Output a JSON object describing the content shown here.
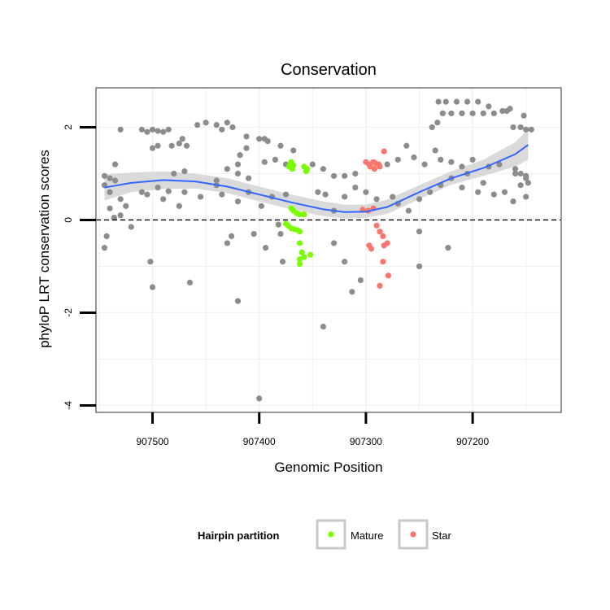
{
  "chart_data": {
    "type": "scatter",
    "title": "Conservation",
    "xlabel": "Genomic Position",
    "ylabel": "phyloP LRT conservation scores",
    "x_reversed": true,
    "xlim": [
      907117,
      907553
    ],
    "ylim": [
      -4.15,
      2.85
    ],
    "x_ticks": [
      907500,
      907400,
      907300,
      907200
    ],
    "y_ticks": [
      -4,
      -2,
      0,
      2
    ],
    "reference_line": {
      "y": 0,
      "style": "dashed"
    },
    "grid": true,
    "legend": {
      "title": "Hairpin partition",
      "position": "bottom",
      "entries": [
        {
          "label": "Mature",
          "color": "#7cfc00"
        },
        {
          "label": "Star",
          "color": "#f8766d"
        }
      ]
    },
    "colors": {
      "other": "#8c8c8c",
      "mature": "#7cfc00",
      "star": "#f8766d",
      "smooth": "#3366ff",
      "band": "#d3d3d3"
    },
    "series": [
      {
        "name": "Mature",
        "points": [
          [
            907372,
            1.15
          ],
          [
            907371,
            1.2
          ],
          [
            907370,
            1.25
          ],
          [
            907368,
            1.18
          ],
          [
            907369,
            1.1
          ],
          [
            907358,
            1.15
          ],
          [
            907355,
            1.1
          ],
          [
            907356,
            1.05
          ],
          [
            907370,
            0.25
          ],
          [
            907368,
            0.2
          ],
          [
            907365,
            0.15
          ],
          [
            907362,
            0.12
          ],
          [
            907358,
            0.12
          ],
          [
            907375,
            -0.08
          ],
          [
            907373,
            -0.12
          ],
          [
            907370,
            -0.18
          ],
          [
            907367,
            -0.2
          ],
          [
            907364,
            -0.22
          ],
          [
            907362,
            -0.25
          ],
          [
            907362,
            -0.5
          ],
          [
            907360,
            -0.7
          ],
          [
            907358,
            -0.8
          ],
          [
            907362,
            -0.85
          ],
          [
            907362,
            -0.95
          ],
          [
            907352,
            -0.75
          ]
        ]
      },
      {
        "name": "Star",
        "points": [
          [
            907300,
            1.25
          ],
          [
            907297,
            1.2
          ],
          [
            907293,
            1.25
          ],
          [
            907291,
            1.22
          ],
          [
            907288,
            1.2
          ],
          [
            907296,
            1.15
          ],
          [
            907292,
            1.1
          ],
          [
            907287,
            1.15
          ],
          [
            907283,
            1.48
          ],
          [
            907303,
            0.22
          ],
          [
            907298,
            0.2
          ],
          [
            907293,
            0.25
          ],
          [
            907290,
            -0.12
          ],
          [
            907287,
            -0.25
          ],
          [
            907284,
            -0.35
          ],
          [
            907297,
            -0.55
          ],
          [
            907295,
            -0.62
          ],
          [
            907283,
            -0.55
          ],
          [
            907280,
            -0.5
          ],
          [
            907284,
            -0.9
          ],
          [
            907279,
            -1.2
          ],
          [
            907287,
            -1.42
          ]
        ]
      },
      {
        "name": "",
        "points": [
          [
            907545,
            -0.6
          ],
          [
            907543,
            -0.35
          ],
          [
            907540,
            0.25
          ],
          [
            907536,
            0.05
          ],
          [
            907530,
            0.1
          ],
          [
            907520,
            -0.15
          ],
          [
            907502,
            -0.9
          ],
          [
            907500,
            -1.45
          ],
          [
            907465,
            -1.35
          ],
          [
            907430,
            -0.5
          ],
          [
            907426,
            -0.35
          ],
          [
            907420,
            -1.75
          ],
          [
            907405,
            -0.3
          ],
          [
            907400,
            -3.85
          ],
          [
            907394,
            -0.6
          ],
          [
            907378,
            -0.9
          ],
          [
            907380,
            -0.3
          ],
          [
            907382,
            -0.1
          ],
          [
            907340,
            -2.3
          ],
          [
            907330,
            -0.5
          ],
          [
            907320,
            -0.9
          ],
          [
            907313,
            -1.55
          ],
          [
            907305,
            -1.3
          ],
          [
            907250,
            -1.0
          ],
          [
            907223,
            -0.6
          ],
          [
            907250,
            -0.25
          ],
          [
            907545,
            0.75
          ],
          [
            907540,
            0.6
          ],
          [
            907535,
            0.85
          ],
          [
            907530,
            0.45
          ],
          [
            907525,
            0.3
          ],
          [
            907510,
            0.6
          ],
          [
            907505,
            0.55
          ],
          [
            907495,
            0.7
          ],
          [
            907490,
            0.45
          ],
          [
            907485,
            0.62
          ],
          [
            907475,
            0.3
          ],
          [
            907470,
            0.6
          ],
          [
            907455,
            0.5
          ],
          [
            907440,
            0.75
          ],
          [
            907435,
            0.55
          ],
          [
            907420,
            0.4
          ],
          [
            907410,
            0.6
          ],
          [
            907398,
            0.3
          ],
          [
            907388,
            0.5
          ],
          [
            907375,
            0.55
          ],
          [
            907345,
            0.6
          ],
          [
            907338,
            0.55
          ],
          [
            907330,
            0.2
          ],
          [
            907320,
            0.5
          ],
          [
            907310,
            0.7
          ],
          [
            907300,
            0.6
          ],
          [
            907290,
            0.45
          ],
          [
            907275,
            0.5
          ],
          [
            907270,
            0.35
          ],
          [
            907260,
            0.2
          ],
          [
            907250,
            0.45
          ],
          [
            907240,
            0.6
          ],
          [
            907230,
            0.75
          ],
          [
            907220,
            0.9
          ],
          [
            907210,
            0.7
          ],
          [
            907205,
            1.0
          ],
          [
            907195,
            0.6
          ],
          [
            907190,
            0.8
          ],
          [
            907180,
            0.55
          ],
          [
            907170,
            0.6
          ],
          [
            907162,
            0.4
          ],
          [
            907155,
            0.75
          ],
          [
            907150,
            0.5
          ],
          [
            907545,
            0.95
          ],
          [
            907540,
            0.9
          ],
          [
            907535,
            1.2
          ],
          [
            907530,
            1.95
          ],
          [
            907480,
            1.0
          ],
          [
            907470,
            1.05
          ],
          [
            907440,
            0.85
          ],
          [
            907430,
            1.1
          ],
          [
            907420,
            1.0
          ],
          [
            907410,
            0.9
          ],
          [
            907395,
            1.25
          ],
          [
            907385,
            1.3
          ],
          [
            907375,
            1.2
          ],
          [
            907350,
            1.2
          ],
          [
            907340,
            1.1
          ],
          [
            907330,
            0.95
          ],
          [
            907320,
            0.95
          ],
          [
            907310,
            1.0
          ],
          [
            907280,
            1.2
          ],
          [
            907270,
            1.3
          ],
          [
            907262,
            1.6
          ],
          [
            907255,
            1.35
          ],
          [
            907245,
            1.2
          ],
          [
            907235,
            1.5
          ],
          [
            907230,
            1.3
          ],
          [
            907220,
            1.25
          ],
          [
            907210,
            1.15
          ],
          [
            907200,
            1.3
          ],
          [
            907185,
            1.15
          ],
          [
            907175,
            1.2
          ],
          [
            907160,
            1.0
          ],
          [
            907150,
            0.9
          ],
          [
            907420,
            1.2
          ],
          [
            907418,
            1.4
          ],
          [
            907412,
            1.55
          ],
          [
            907510,
            1.95
          ],
          [
            907505,
            1.9
          ],
          [
            907500,
            1.95
          ],
          [
            907495,
            1.92
          ],
          [
            907490,
            1.9
          ],
          [
            907485,
            1.95
          ],
          [
            907500,
            1.55
          ],
          [
            907495,
            1.6
          ],
          [
            907482,
            1.6
          ],
          [
            907475,
            1.65
          ],
          [
            907472,
            1.75
          ],
          [
            907468,
            1.6
          ],
          [
            907458,
            2.05
          ],
          [
            907450,
            2.1
          ],
          [
            907440,
            2.05
          ],
          [
            907435,
            1.95
          ],
          [
            907430,
            2.1
          ],
          [
            907425,
            2.0
          ],
          [
            907412,
            1.8
          ],
          [
            907400,
            1.75
          ],
          [
            907395,
            1.75
          ],
          [
            907392,
            1.7
          ],
          [
            907380,
            1.6
          ],
          [
            907368,
            1.5
          ],
          [
            907238,
            2.0
          ],
          [
            907233,
            2.1
          ],
          [
            907228,
            2.3
          ],
          [
            907220,
            2.3
          ],
          [
            907210,
            2.3
          ],
          [
            907200,
            2.3
          ],
          [
            907190,
            2.3
          ],
          [
            907180,
            2.3
          ],
          [
            907232,
            2.55
          ],
          [
            907225,
            2.55
          ],
          [
            907215,
            2.55
          ],
          [
            907205,
            2.55
          ],
          [
            907195,
            2.55
          ],
          [
            907185,
            2.45
          ],
          [
            907172,
            2.35
          ],
          [
            907168,
            2.35
          ],
          [
            907165,
            2.4
          ],
          [
            907155,
            2.0
          ],
          [
            907150,
            1.95
          ],
          [
            907145,
            1.95
          ],
          [
            907152,
            2.25
          ],
          [
            907162,
            2.0
          ],
          [
            907160,
            1.1
          ],
          [
            907155,
            1.0
          ],
          [
            907150,
            0.95
          ],
          [
            907148,
            0.8
          ]
        ]
      }
    ],
    "smooth": [
      [
        907545,
        0.7
      ],
      [
        907520,
        0.8
      ],
      [
        907490,
        0.86
      ],
      [
        907460,
        0.83
      ],
      [
        907430,
        0.72
      ],
      [
        907400,
        0.55
      ],
      [
        907370,
        0.38
      ],
      [
        907340,
        0.23
      ],
      [
        907320,
        0.17
      ],
      [
        907300,
        0.18
      ],
      [
        907280,
        0.28
      ],
      [
        907250,
        0.6
      ],
      [
        907220,
        0.9
      ],
      [
        907190,
        1.12
      ],
      [
        907160,
        1.42
      ],
      [
        907148,
        1.62
      ]
    ],
    "smooth_band": [
      [
        907545,
        0.98,
        0.42
      ],
      [
        907520,
        1.02,
        0.6
      ],
      [
        907490,
        1.05,
        0.67
      ],
      [
        907460,
        1.0,
        0.68
      ],
      [
        907430,
        0.9,
        0.58
      ],
      [
        907400,
        0.72,
        0.4
      ],
      [
        907370,
        0.55,
        0.23
      ],
      [
        907340,
        0.4,
        0.08
      ],
      [
        907320,
        0.33,
        0.03
      ],
      [
        907300,
        0.33,
        0.05
      ],
      [
        907280,
        0.44,
        0.13
      ],
      [
        907250,
        0.75,
        0.45
      ],
      [
        907220,
        1.05,
        0.76
      ],
      [
        907190,
        1.3,
        0.95
      ],
      [
        907160,
        1.68,
        1.15
      ],
      [
        907148,
        1.95,
        1.3
      ]
    ]
  }
}
